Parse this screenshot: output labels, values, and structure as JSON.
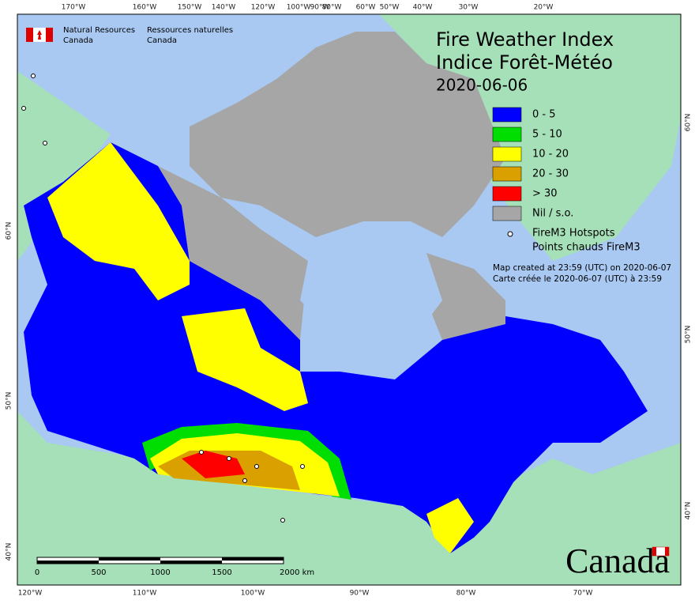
{
  "header": {
    "agency_en": "Natural Resources",
    "agency_en_2": "Canada",
    "agency_fr": "Ressources naturelles",
    "agency_fr_2": "Canada",
    "title_en": "Fire Weather Index",
    "title_fr": "Indice Forêt-Météo",
    "date": "2020-06-06"
  },
  "legend": {
    "items": [
      {
        "label": "0 - 5",
        "color": "#0000ff"
      },
      {
        "label": "5 - 10",
        "color": "#00dd00"
      },
      {
        "label": "10 - 20",
        "color": "#ffff00"
      },
      {
        "label": "20 - 30",
        "color": "#d9a000"
      },
      {
        "label": "> 30",
        "color": "#ff0000"
      },
      {
        "label": "Nil / s.o.",
        "color": "#a6a6a6"
      }
    ],
    "hotspots_en": "FireM3 Hotspots",
    "hotspots_fr": "Points chauds FireM3",
    "created_en": "Map created at 23:59 (UTC) on 2020-06-07",
    "created_fr": "Carte créée le 2020-06-07 (UTC) à 23:59"
  },
  "graticule": {
    "top": [
      "170°W",
      "160°W",
      "150°W",
      "140°W",
      "120°W",
      "100°W",
      "90°W",
      "80°W",
      "60°W",
      "50°W",
      "40°W",
      "30°W",
      "20°W"
    ],
    "bottom": [
      "120°W",
      "110°W",
      "100°W",
      "90°W",
      "80°W",
      "70°W"
    ],
    "left": [
      "60°N",
      "50°N",
      "40°N"
    ],
    "right": [
      "60°N",
      "50°N",
      "40°N"
    ]
  },
  "scale_bar": {
    "labels": [
      "0",
      "500",
      "1000",
      "1500",
      "2000 km"
    ]
  },
  "wordmark": "Canada"
}
